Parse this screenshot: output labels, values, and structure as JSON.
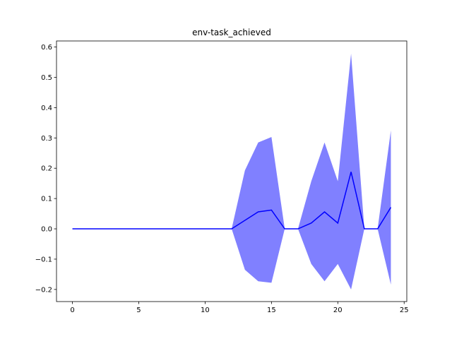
{
  "chart_data": {
    "type": "line",
    "title": "env-task_achieved",
    "xlabel": "",
    "ylabel": "",
    "xlim": [
      -1.2,
      25.2
    ],
    "ylim": [
      -0.24,
      0.62
    ],
    "x_ticks": [
      0,
      5,
      10,
      15,
      20,
      25
    ],
    "x_tick_labels": [
      "0",
      "5",
      "10",
      "15",
      "20",
      "25"
    ],
    "y_ticks": [
      -0.2,
      -0.1,
      0.0,
      0.1,
      0.2,
      0.3,
      0.4,
      0.5,
      0.6
    ],
    "y_tick_labels": [
      "−0.2",
      "−0.1",
      "0.0",
      "0.1",
      "0.2",
      "0.3",
      "0.4",
      "0.5",
      "0.6"
    ],
    "grid": false,
    "x": [
      0,
      1,
      2,
      3,
      4,
      5,
      6,
      7,
      8,
      9,
      10,
      11,
      12,
      13,
      14,
      15,
      16,
      17,
      18,
      19,
      20,
      21,
      22,
      23,
      24
    ],
    "series": [
      {
        "values": [
          0,
          0,
          0,
          0,
          0,
          0,
          0,
          0,
          0,
          0,
          0,
          0,
          0,
          0.028,
          0.056,
          0.062,
          0,
          0,
          0.019,
          0.056,
          0.019,
          0.188,
          0,
          0,
          0.071
        ],
        "upper": [
          0,
          0,
          0,
          0,
          0,
          0,
          0,
          0,
          0,
          0,
          0,
          0,
          0,
          0.193,
          0.285,
          0.303,
          0,
          0,
          0.157,
          0.285,
          0.157,
          0.578,
          0,
          0,
          0.325
        ],
        "lower": [
          0,
          0,
          0,
          0,
          0,
          0,
          0,
          0,
          0,
          0,
          0,
          0,
          0,
          -0.135,
          -0.173,
          -0.178,
          0,
          0,
          -0.116,
          -0.173,
          -0.116,
          -0.2,
          0,
          0,
          -0.184
        ],
        "line_color": "#0000ff",
        "band_color": "#8080ff"
      }
    ]
  }
}
